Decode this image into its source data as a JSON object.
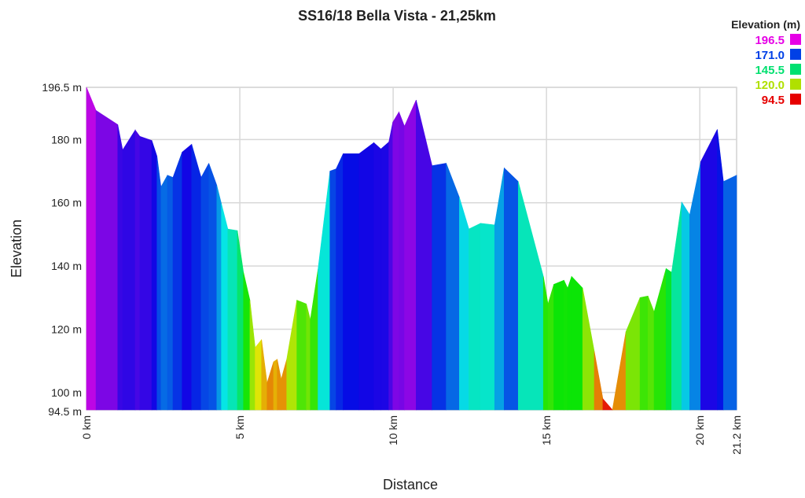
{
  "chart_data": {
    "type": "area",
    "title": "SS16/18 Bella Vista - 21,25km",
    "xlabel": "Distance",
    "ylabel": "Elevation",
    "xlim": [
      0,
      21.2
    ],
    "ylim": [
      94.5,
      196.5
    ],
    "x_ticks": [
      {
        "value": 0,
        "label": "0 km"
      },
      {
        "value": 5,
        "label": "5 km"
      },
      {
        "value": 10,
        "label": "10 km"
      },
      {
        "value": 15,
        "label": "15 km"
      },
      {
        "value": 20,
        "label": "20 km"
      },
      {
        "value": 21.2,
        "label": "21.2 km"
      }
    ],
    "y_ticks": [
      {
        "value": 196.5,
        "label": "196.5 m"
      },
      {
        "value": 180,
        "label": "180 m"
      },
      {
        "value": 160,
        "label": "160 m"
      },
      {
        "value": 140,
        "label": "140 m"
      },
      {
        "value": 120,
        "label": "120 m"
      },
      {
        "value": 100,
        "label": "100 m"
      },
      {
        "value": 94.5,
        "label": "94.5 m"
      }
    ],
    "grid": true,
    "legend": {
      "title": "Elevation (m)",
      "placement": "top-right",
      "items": [
        {
          "label": "196.5",
          "color": "#e600e6"
        },
        {
          "label": "171.0",
          "color": "#0040e6"
        },
        {
          "label": "145.5",
          "color": "#00e070"
        },
        {
          "label": "120.0",
          "color": "#b0e000"
        },
        {
          "label": "94.5",
          "color": "#e60000"
        }
      ]
    },
    "x": [
      0,
      0.31,
      1.02,
      1.18,
      1.59,
      1.74,
      2.13,
      2.3,
      2.43,
      2.64,
      2.82,
      3.12,
      3.43,
      3.74,
      3.99,
      4.25,
      4.4,
      4.61,
      4.92,
      5.12,
      5.33,
      5.5,
      5.71,
      5.89,
      6.1,
      6.22,
      6.35,
      6.53,
      6.86,
      7.17,
      7.3,
      7.55,
      7.94,
      8.14,
      8.37,
      8.89,
      9.37,
      9.6,
      9.86,
      9.99,
      10.19,
      10.37,
      10.75,
      11.27,
      11.73,
      12.16,
      12.47,
      12.85,
      13.31,
      13.62,
      14.08,
      14.9,
      15.05,
      15.24,
      15.57,
      15.69,
      15.82,
      16.18,
      16.56,
      16.84,
      17.15,
      17.59,
      18.05,
      18.31,
      18.51,
      18.9,
      19.08,
      19.41,
      19.67,
      20.03,
      20.57,
      20.77,
      21.2
    ],
    "y": [
      196.5,
      189.2,
      184.7,
      176.7,
      183,
      181,
      179.7,
      174.7,
      165,
      168.7,
      168,
      176,
      178.5,
      168,
      172.5,
      165.5,
      159.7,
      151.7,
      151.2,
      138,
      129.2,
      114.2,
      116.7,
      103,
      109.7,
      110.5,
      104.2,
      110.5,
      129.2,
      128,
      123,
      139,
      170,
      170.7,
      175.5,
      175.5,
      179,
      177,
      179.2,
      185.5,
      188.7,
      184.2,
      192.5,
      171.7,
      172.5,
      161.7,
      151.7,
      153.5,
      153,
      171,
      166.7,
      136.7,
      128,
      134.2,
      135.5,
      133,
      136.7,
      133,
      113,
      98,
      94.5,
      119.2,
      130,
      130.5,
      125.5,
      139.2,
      138,
      160.2,
      156.2,
      173,
      183.2,
      166.7,
      168.7
    ]
  }
}
